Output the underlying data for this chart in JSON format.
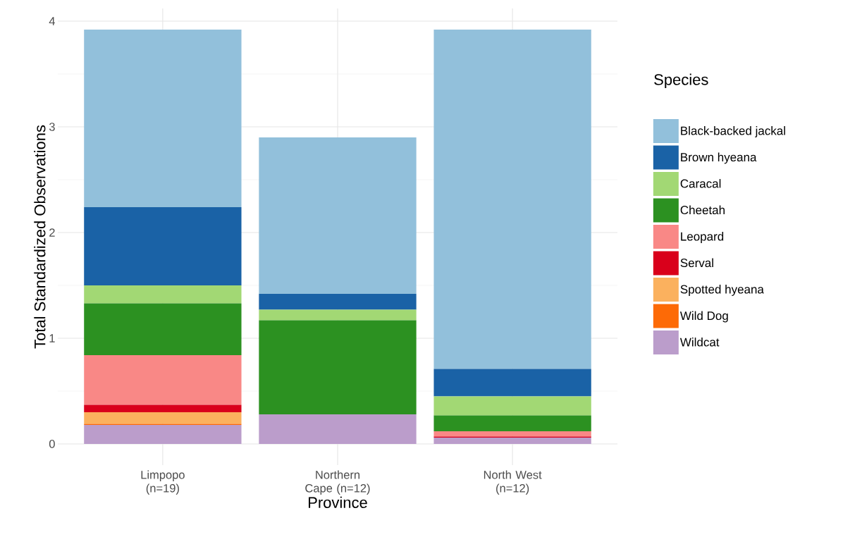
{
  "chart_data": {
    "type": "bar",
    "stacked": true,
    "xlabel": "Province",
    "ylabel": "Total Standardized Observations",
    "legend_title": "Species",
    "categories": [
      "Limpopo (n=19)",
      "Northern Cape (n=12)",
      "North West (n=12)"
    ],
    "ylim": [
      -0.2,
      4.12
    ],
    "yticks": [
      0,
      1,
      2,
      3,
      4
    ],
    "grid": true,
    "legend": "right",
    "series": [
      {
        "name": "Wildcat",
        "color": "#bb9dcb",
        "values": [
          0.18,
          0.28,
          0.06
        ]
      },
      {
        "name": "Wild Dog",
        "color": "#fd6a06",
        "values": [
          0.01,
          null,
          null
        ]
      },
      {
        "name": "Spotted hyeana",
        "color": "#fbb15e",
        "values": [
          0.11,
          null,
          null
        ]
      },
      {
        "name": "Serval",
        "color": "#d9001b",
        "values": [
          0.07,
          null,
          0.01
        ]
      },
      {
        "name": "Leopard",
        "color": "#f98886",
        "values": [
          0.47,
          null,
          0.05
        ]
      },
      {
        "name": "Cheetah",
        "color": "#2c9121",
        "values": [
          0.49,
          0.89,
          0.15
        ]
      },
      {
        "name": "Caracal",
        "color": "#a2d874",
        "values": [
          0.17,
          0.1,
          0.18
        ]
      },
      {
        "name": "Brown hyeana",
        "color": "#1a62a6",
        "values": [
          0.74,
          0.15,
          0.26
        ]
      },
      {
        "name": "Black-backed jackal",
        "color": "#92c0db",
        "values": [
          1.68,
          1.48,
          3.21
        ]
      }
    ]
  }
}
